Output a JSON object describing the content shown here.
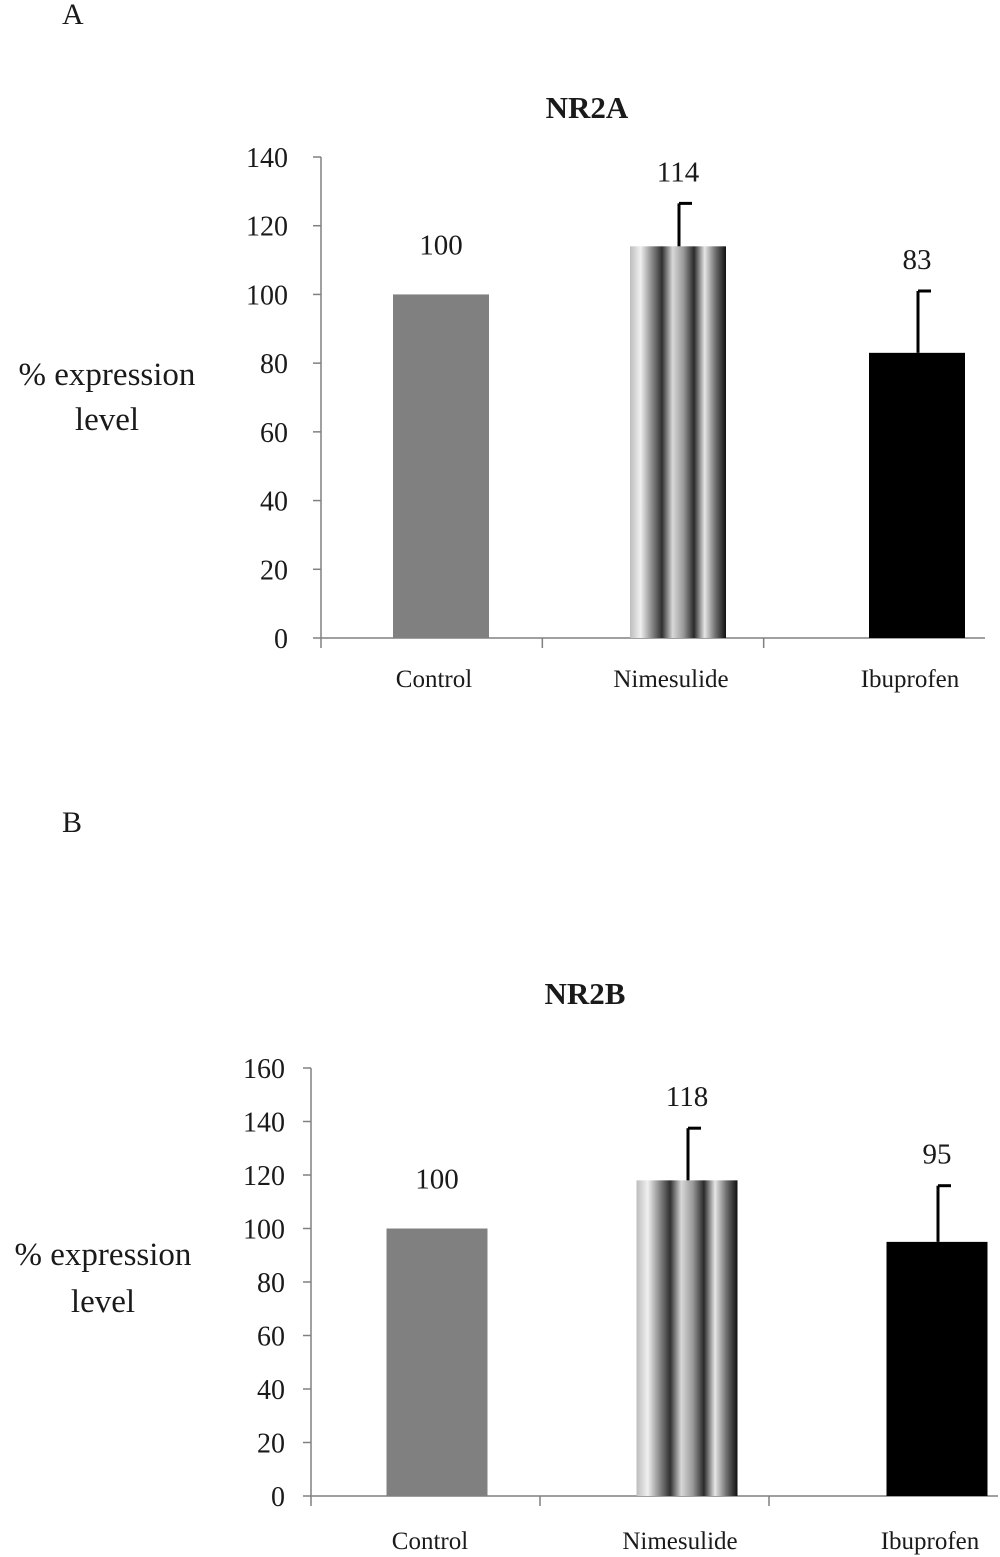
{
  "panels": [
    {
      "panel_label": "A",
      "title": "NR2A",
      "ylabel_lines": [
        "% expression",
        "level"
      ]
    },
    {
      "panel_label": "B",
      "title": "NR2B",
      "ylabel_lines": [
        "% expression",
        "level"
      ]
    }
  ],
  "colors": {
    "control": "#808080",
    "ibuprofen": "#000000",
    "axis": "#808080",
    "nimesulide_stripes": [
      "#bdbdbd",
      "#f0f0f0",
      "#8f8f8f",
      "#303030",
      "#d8d8d8",
      "#9a9a9a",
      "#2a2a2a",
      "#e6e6e6",
      "#707070",
      "#101010"
    ]
  },
  "chart_data": [
    {
      "type": "bar",
      "title": "NR2A",
      "xlabel": "",
      "ylabel": "% expression level",
      "categories": [
        "Control",
        "Nimesulide",
        "Ibuprofen"
      ],
      "values": [
        100,
        114,
        83
      ],
      "data_labels": [
        "100",
        "114",
        "83"
      ],
      "error_upper": [
        0,
        12.5,
        18
      ],
      "ylim": [
        0,
        140
      ],
      "yticks": [
        0,
        20,
        40,
        60,
        80,
        100,
        120,
        140
      ],
      "grid": false,
      "legend": "none"
    },
    {
      "type": "bar",
      "title": "NR2B",
      "xlabel": "",
      "ylabel": "% expression level",
      "categories": [
        "Control",
        "Nimesulide",
        "Ibuprofen"
      ],
      "values": [
        100,
        118,
        95
      ],
      "data_labels": [
        "100",
        "118",
        "95"
      ],
      "error_upper": [
        0,
        19.5,
        21
      ],
      "ylim": [
        0,
        160
      ],
      "yticks": [
        0,
        20,
        40,
        60,
        80,
        100,
        120,
        140,
        160
      ],
      "grid": false,
      "legend": "none"
    }
  ]
}
